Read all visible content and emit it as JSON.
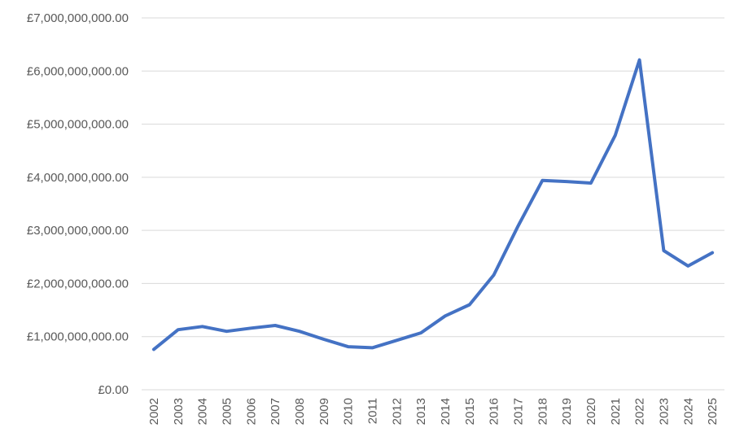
{
  "chart_data": {
    "type": "line",
    "title": "",
    "xlabel": "",
    "ylabel": "",
    "categories": [
      "2002",
      "2003",
      "2004",
      "2005",
      "2006",
      "2007",
      "2008",
      "2009",
      "2010",
      "2011",
      "2012",
      "2013",
      "2014",
      "2015",
      "2016",
      "2017",
      "2018",
      "2019",
      "2020",
      "2021",
      "2022",
      "2023",
      "2024",
      "2025"
    ],
    "series": [
      {
        "values": [
          760000000,
          1130000000,
          1190000000,
          1100000000,
          1160000000,
          1210000000,
          1100000000,
          950000000,
          810000000,
          790000000,
          930000000,
          1070000000,
          1390000000,
          1600000000,
          2160000000,
          3080000000,
          3940000000,
          3920000000,
          3890000000,
          4790000000,
          6210000000,
          2620000000,
          2330000000,
          2580000000
        ],
        "color": "#4472c4"
      }
    ],
    "yticks": [
      "£0.00",
      "£1,000,000,000.00",
      "£2,000,000,000.00",
      "£3,000,000,000.00",
      "£4,000,000,000.00",
      "£5,000,000,000.00",
      "£6,000,000,000.00",
      "£7,000,000,000.00"
    ],
    "ylim": [
      0,
      7000000000
    ],
    "grid": true,
    "legend": "none"
  }
}
